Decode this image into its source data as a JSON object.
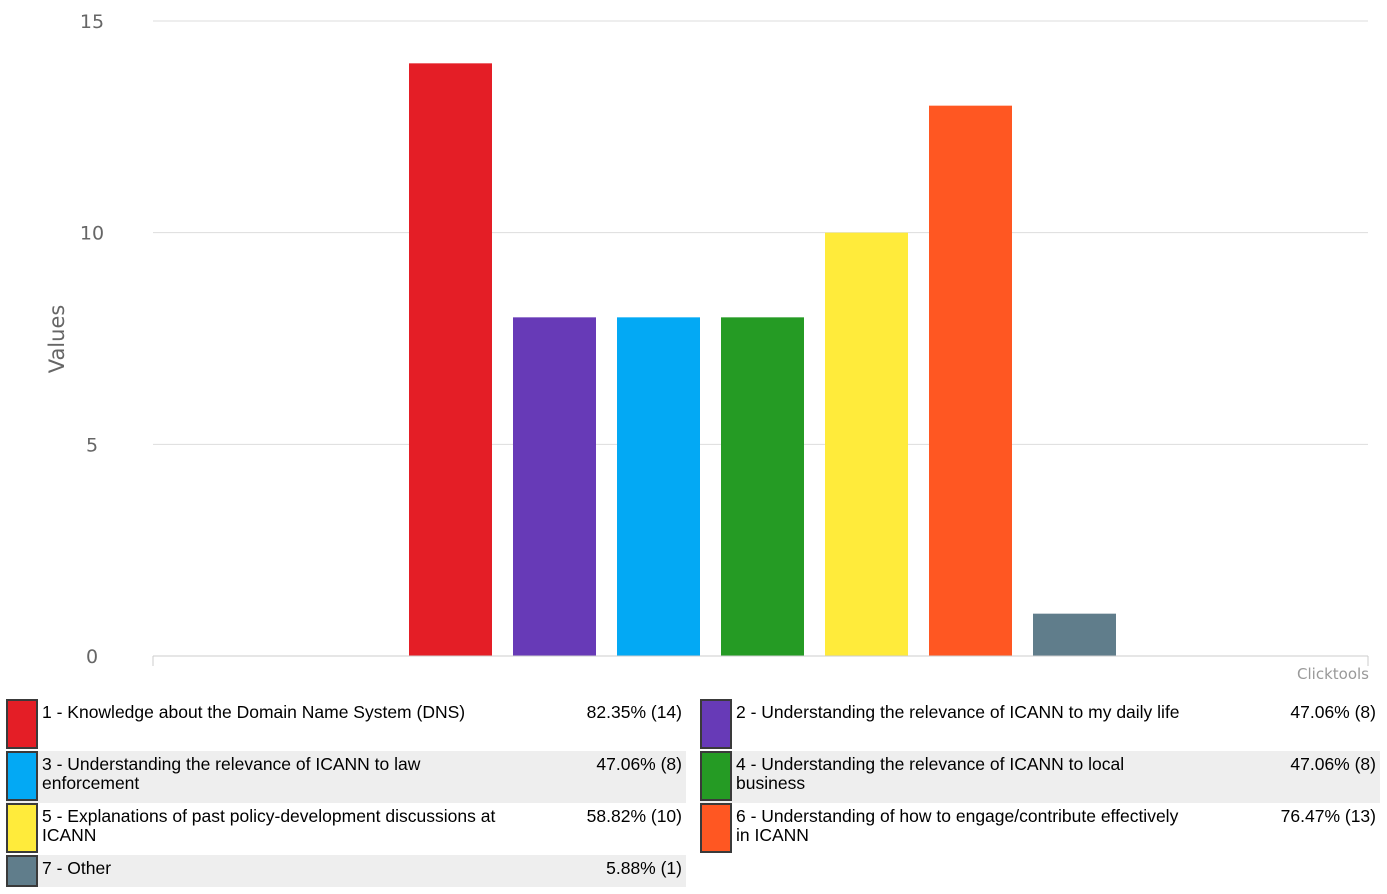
{
  "chart_data": {
    "type": "bar",
    "categories": [
      "1",
      "2",
      "3",
      "4",
      "5",
      "6",
      "7"
    ],
    "values": [
      14,
      8,
      8,
      8,
      10,
      13,
      1
    ],
    "colors": [
      "#e41e26",
      "#673ab7",
      "#03a9f4",
      "#259b24",
      "#ffeb3b",
      "#ff5722",
      "#607d8b"
    ],
    "ylabel": "Values",
    "ylim": [
      0,
      15
    ],
    "yticks": [
      "0",
      "5",
      "10",
      "15"
    ],
    "grid": true,
    "credit": "Clicktools"
  },
  "legend": [
    {
      "label": "1 - Knowledge about the Domain Name System (DNS)",
      "value": "82.35% (14)",
      "color": "#e41e26"
    },
    {
      "label": "2 - Understanding the relevance of ICANN to my daily life",
      "value": "47.06% (8)",
      "color": "#673ab7"
    },
    {
      "label": "3 - Understanding the relevance of ICANN to law enforcement",
      "value": "47.06% (8)",
      "color": "#03a9f4"
    },
    {
      "label": "4 - Understanding the relevance of ICANN to local business",
      "value": "47.06% (8)",
      "color": "#259b24"
    },
    {
      "label": "5 - Explanations of past policy-development discussions at ICANN",
      "value": "58.82% (10)",
      "color": "#ffeb3b"
    },
    {
      "label": "6 - Understanding of how to engage/contribute effectively in ICANN",
      "value": "76.47% (13)",
      "color": "#ff5722"
    },
    {
      "label": "7 - Other",
      "value": "5.88% (1)",
      "color": "#607d8b"
    }
  ]
}
